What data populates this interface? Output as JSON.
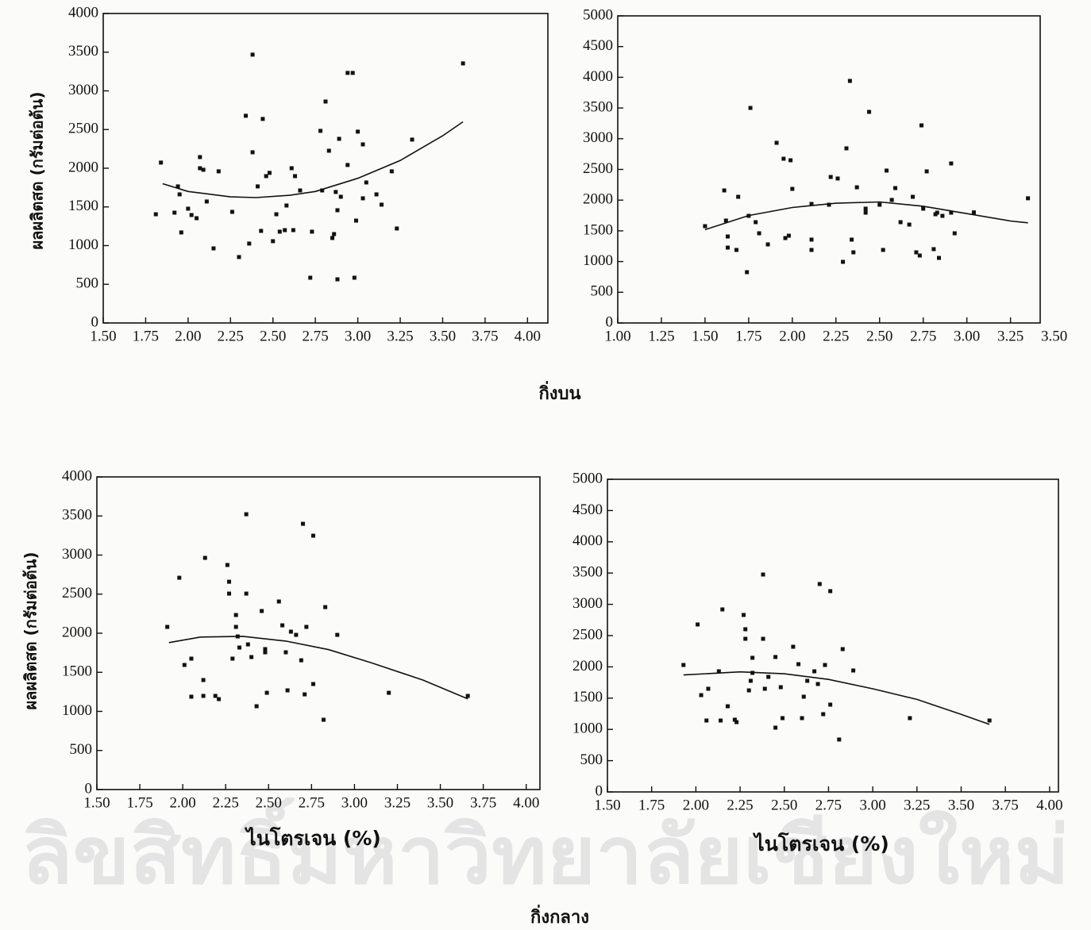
{
  "chart_data": [
    {
      "type": "scatter",
      "ylabel": "ผลผลิตสด (กรัมต่อต้น)",
      "xlim": [
        1.5,
        4.12
      ],
      "ylim": [
        0,
        4000
      ],
      "xticks": [
        {
          "value": 1.5,
          "label": "1.50"
        },
        {
          "value": 1.75,
          "label": "1.75"
        },
        {
          "value": 2,
          "label": "2.00"
        },
        {
          "value": 2.25,
          "label": "2.25"
        },
        {
          "value": 2.5,
          "label": "2.50"
        },
        {
          "value": 2.75,
          "label": "2.75"
        },
        {
          "value": 3,
          "label": "3.00"
        },
        {
          "value": 3.25,
          "label": "3.25"
        },
        {
          "value": 3.5,
          "label": "3.50"
        },
        {
          "value": 3.75,
          "label": "3.75"
        },
        {
          "value": 4,
          "label": "4.00"
        }
      ],
      "yticks": [
        0,
        500,
        1000,
        1500,
        2000,
        2500,
        3000,
        3500,
        4000
      ],
      "series": [
        {
          "mode": "markers",
          "color": "#111111",
          "x": [
            1.81,
            1.84,
            1.94,
            1.95,
            1.96,
            1.92,
            2.0,
            2.02,
            2.05,
            2.07,
            2.07,
            2.09,
            2.11,
            2.15,
            2.18,
            2.26,
            2.3,
            2.34,
            2.36,
            2.38,
            2.38,
            2.41,
            2.43,
            2.44,
            2.46,
            2.48,
            2.5,
            2.52,
            2.54,
            2.57,
            2.58,
            2.61,
            2.62,
            2.63,
            2.66,
            2.73,
            2.72,
            2.78,
            2.79,
            2.81,
            2.83,
            2.85,
            2.86,
            2.87,
            2.88,
            2.88,
            2.89,
            2.9,
            2.94,
            2.94,
            2.97,
            2.98,
            2.99,
            3.0,
            3.03,
            3.03,
            3.05,
            3.11,
            3.14,
            3.2,
            3.23,
            3.32,
            3.62
          ],
          "values": [
            1405,
            2073,
            1765,
            1662,
            1170,
            1426,
            1477,
            1395,
            1354,
            2144,
            2000,
            1980,
            1570,
            964,
            1960,
            1436,
            852,
            2678,
            1026,
            3468,
            2206,
            1765,
            1190,
            2637,
            1898,
            1940,
            1057,
            1405,
            1180,
            1200,
            1518,
            2000,
            1200,
            1898,
            1713,
            1180,
            585,
            2483,
            1713,
            2862,
            2226,
            1098,
            1149,
            1693,
            564,
            1457,
            2380,
            1631,
            2042,
            3232,
            3232,
            585,
            1323,
            2473,
            2308,
            1611,
            1816,
            1662,
            1529,
            1960,
            1221,
            2370,
            3355
          ]
        },
        {
          "mode": "line",
          "color": "#111111",
          "x": [
            1.85,
            2.0,
            2.25,
            2.4,
            2.6,
            2.75,
            3.0,
            3.25,
            3.5,
            3.62
          ],
          "values": [
            1800,
            1700,
            1630,
            1620,
            1650,
            1700,
            1870,
            2100,
            2420,
            2600
          ]
        }
      ]
    },
    {
      "type": "scatter",
      "xlim": [
        1.0,
        3.42
      ],
      "ylim": [
        0,
        5000
      ],
      "xticks": [
        {
          "value": 1,
          "label": "1.00"
        },
        {
          "value": 1.25,
          "label": "1.25"
        },
        {
          "value": 1.5,
          "label": "1.50"
        },
        {
          "value": 1.75,
          "label": "1.75"
        },
        {
          "value": 2,
          "label": "2.00"
        },
        {
          "value": 2.25,
          "label": "2.25"
        },
        {
          "value": 2.5,
          "label": "2.50"
        },
        {
          "value": 2.75,
          "label": "2.75"
        },
        {
          "value": 3,
          "label": "3.00"
        },
        {
          "value": 3.25,
          "label": "3.25"
        },
        {
          "value": 3.5,
          "label": "3.50"
        }
      ],
      "yticks": [
        0,
        500,
        1000,
        1500,
        2000,
        2500,
        3000,
        3500,
        4000,
        4500,
        5000
      ],
      "series": [
        {
          "mode": "markers",
          "color": "#111111",
          "x": [
            1.5,
            1.61,
            1.62,
            1.63,
            1.63,
            1.68,
            1.69,
            1.74,
            1.75,
            1.76,
            1.79,
            1.81,
            1.86,
            1.91,
            1.95,
            1.96,
            1.98,
            1.99,
            2.0,
            2.11,
            2.11,
            2.11,
            2.21,
            2.22,
            2.26,
            2.29,
            2.31,
            2.33,
            2.34,
            2.35,
            2.37,
            2.42,
            2.42,
            2.44,
            2.5,
            2.52,
            2.54,
            2.57,
            2.59,
            2.62,
            2.67,
            2.69,
            2.71,
            2.73,
            2.74,
            2.75,
            2.77,
            2.81,
            2.82,
            2.83,
            2.84,
            2.86,
            2.91,
            2.91,
            2.93,
            3.04,
            3.35
          ],
          "values": [
            1576,
            2158,
            1667,
            1408,
            1227,
            1189,
            2054,
            827,
            1744,
            3501,
            1641,
            1460,
            1279,
            2933,
            2674,
            1382,
            1421,
            2649,
            2183,
            1938,
            1357,
            1189,
            1925,
            2377,
            2352,
            995,
            2843,
            3941,
            1357,
            1150,
            2209,
            1861,
            1796,
            3437,
            1925,
            1189,
            2481,
            2003,
            2196,
            1641,
            1602,
            2054,
            1150,
            1098,
            3217,
            1861,
            2468,
            1202,
            1770,
            1796,
            1059,
            1744,
            1796,
            2597,
            1460,
            1800,
            2030
          ]
        },
        {
          "mode": "line",
          "color": "#111111",
          "x": [
            1.5,
            1.75,
            2.0,
            2.25,
            2.5,
            2.75,
            3.0,
            3.25,
            3.35
          ],
          "values": [
            1520,
            1750,
            1880,
            1950,
            1970,
            1900,
            1780,
            1660,
            1630
          ]
        }
      ]
    },
    {
      "type": "scatter",
      "ylabel": "ผลผลิตสด (กรัมต่อต้น)",
      "xlabel": "ไนโตรเจน (%)",
      "xlim": [
        1.5,
        4.08
      ],
      "ylim": [
        0,
        4000
      ],
      "xticks": [
        {
          "value": 1.5,
          "label": "1.50"
        },
        {
          "value": 1.75,
          "label": "1.75"
        },
        {
          "value": 2,
          "label": "2.00"
        },
        {
          "value": 2.25,
          "label": "2.25"
        },
        {
          "value": 2.5,
          "label": "2.50"
        },
        {
          "value": 2.75,
          "label": "2.75"
        },
        {
          "value": 3,
          "label": "3.00"
        },
        {
          "value": 3.25,
          "label": "3.25"
        },
        {
          "value": 3.5,
          "label": "3.50"
        },
        {
          "value": 3.75,
          "label": "3.75"
        },
        {
          "value": 4,
          "label": "4.00"
        }
      ],
      "yticks": [
        0,
        500,
        1000,
        1500,
        2000,
        2500,
        3000,
        3500,
        4000
      ],
      "series": [
        {
          "mode": "markers",
          "color": "#111111",
          "x": [
            1.91,
            1.98,
            2.01,
            2.05,
            2.05,
            2.12,
            2.12,
            2.13,
            2.19,
            2.21,
            2.26,
            2.27,
            2.27,
            2.29,
            2.31,
            2.31,
            2.32,
            2.33,
            2.37,
            2.37,
            2.38,
            2.4,
            2.43,
            2.46,
            2.48,
            2.48,
            2.49,
            2.56,
            2.58,
            2.6,
            2.61,
            2.63,
            2.66,
            2.69,
            2.7,
            2.71,
            2.72,
            2.76,
            2.76,
            2.83,
            2.82,
            2.9,
            3.2,
            3.66
          ],
          "values": [
            2081,
            2710,
            1594,
            1675,
            1188,
            1198,
            1401,
            2964,
            1198,
            1157,
            2873,
            2659,
            2507,
            1675,
            2233,
            2081,
            1959,
            1817,
            3522,
            2507,
            1857,
            1695,
            1066,
            2284,
            1797,
            1756,
            1238,
            2406,
            2101,
            1756,
            1269,
            2020,
            1979,
            1654,
            3400,
            1218,
            2081,
            3248,
            1350,
            2334,
            893,
            1979,
            1238,
            1198
          ]
        },
        {
          "mode": "line",
          "color": "#111111",
          "x": [
            1.92,
            2.1,
            2.35,
            2.6,
            2.85,
            3.1,
            3.4,
            3.66
          ],
          "values": [
            1880,
            1950,
            1960,
            1900,
            1790,
            1620,
            1400,
            1160
          ]
        }
      ]
    },
    {
      "type": "scatter",
      "xlabel": "ไนโตรเจน (%)",
      "xlim": [
        1.5,
        4.05
      ],
      "ylim": [
        0,
        5000
      ],
      "xticks": [
        {
          "value": 1.5,
          "label": "1.50"
        },
        {
          "value": 1.75,
          "label": "1.75"
        },
        {
          "value": 2,
          "label": "2.00"
        },
        {
          "value": 2.25,
          "label": "2.25"
        },
        {
          "value": 2.5,
          "label": "2.50"
        },
        {
          "value": 2.75,
          "label": "2.75"
        },
        {
          "value": 3,
          "label": "3.00"
        },
        {
          "value": 3.25,
          "label": "3.25"
        },
        {
          "value": 3.5,
          "label": "3.50"
        },
        {
          "value": 3.75,
          "label": "3.75"
        },
        {
          "value": 4,
          "label": "4.00"
        }
      ],
      "yticks": [
        0,
        500,
        1000,
        1500,
        2000,
        2500,
        3000,
        3500,
        4000,
        4500,
        5000
      ],
      "series": [
        {
          "mode": "markers",
          "color": "#111111",
          "x": [
            1.93,
            2.01,
            2.03,
            2.06,
            2.07,
            2.13,
            2.15,
            2.14,
            2.18,
            2.22,
            2.23,
            2.27,
            2.28,
            2.28,
            2.3,
            2.31,
            2.32,
            2.32,
            2.38,
            2.38,
            2.39,
            2.41,
            2.45,
            2.45,
            2.48,
            2.49,
            2.55,
            2.58,
            2.6,
            2.61,
            2.63,
            2.67,
            2.69,
            2.7,
            2.72,
            2.73,
            2.76,
            2.76,
            2.83,
            2.81,
            2.89,
            3.21,
            3.66
          ],
          "values": [
            2030,
            2678,
            1548,
            1142,
            1650,
            1929,
            2919,
            1142,
            1370,
            1155,
            1117,
            2830,
            2602,
            2449,
            1624,
            1777,
            2145,
            1904,
            3477,
            2449,
            1650,
            1840,
            1028,
            2158,
            1675,
            1180,
            2322,
            2043,
            1180,
            1523,
            1777,
            1929,
            1726,
            3325,
            1244,
            2030,
            3211,
            1396,
            2284,
            838,
            1942,
            1180,
            1142
          ]
        },
        {
          "mode": "line",
          "color": "#111111",
          "x": [
            1.93,
            2.25,
            2.5,
            2.75,
            3.0,
            3.25,
            3.5,
            3.66
          ],
          "values": [
            1870,
            1920,
            1890,
            1800,
            1650,
            1480,
            1240,
            1080
          ]
        }
      ]
    }
  ],
  "group_labels": [
    "กิ่งบน",
    "กิ่งกลาง"
  ],
  "watermark": "ลิขสิทธิ์มหาวิทยาลัยเชียงใหม่"
}
